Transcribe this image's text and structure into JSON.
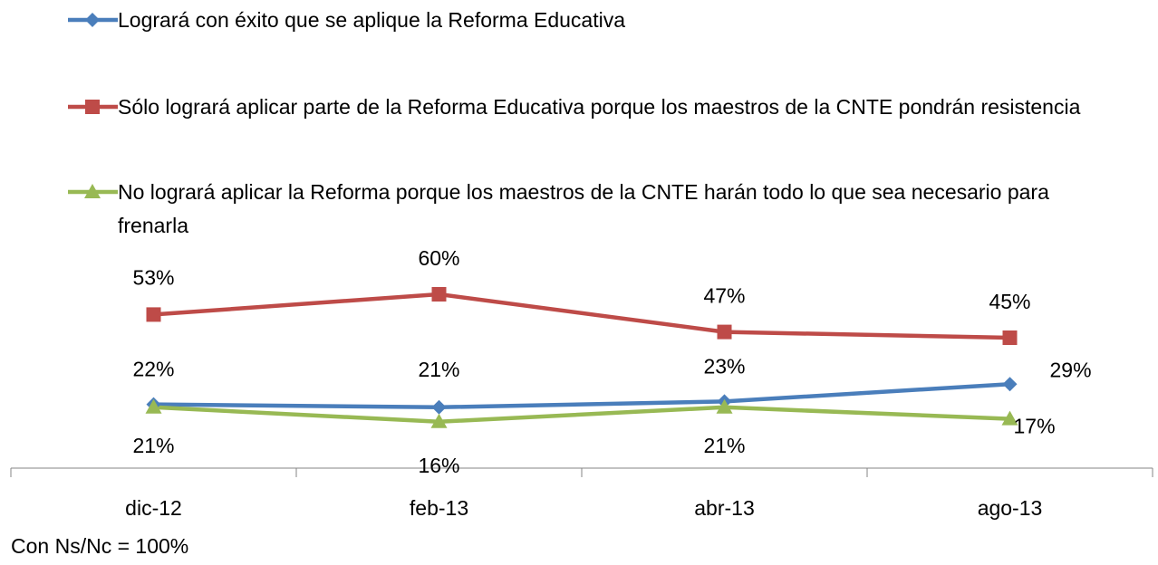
{
  "chart_data": {
    "type": "line",
    "categories": [
      "dic-12",
      "feb-13",
      "abr-13",
      "ago-13"
    ],
    "series": [
      {
        "name": "Logrará con éxito que se aplique la Reforma Educativa",
        "color": "#4a7ebb",
        "marker": "diamond",
        "values": [
          22,
          21,
          23,
          29
        ],
        "value_labels": [
          "22%",
          "21%",
          "23%",
          "29%"
        ]
      },
      {
        "name": "Sólo logrará aplicar parte de la Reforma Educativa porque los maestros de la CNTE pondrán resistencia",
        "color": "#be4b48",
        "marker": "square",
        "values": [
          53,
          60,
          47,
          45
        ],
        "value_labels": [
          "53%",
          "60%",
          "47%",
          "45%"
        ]
      },
      {
        "name": "No logrará aplicar la Reforma porque los maestros de la CNTE harán todo lo que sea necesario para frenarla",
        "color": "#98b954",
        "marker": "triangle",
        "values": [
          21,
          16,
          21,
          17
        ],
        "value_labels": [
          "21%",
          "16%",
          "21%",
          "17%"
        ]
      }
    ],
    "legend": "top",
    "note": "Con Ns/Nc = 100%"
  }
}
